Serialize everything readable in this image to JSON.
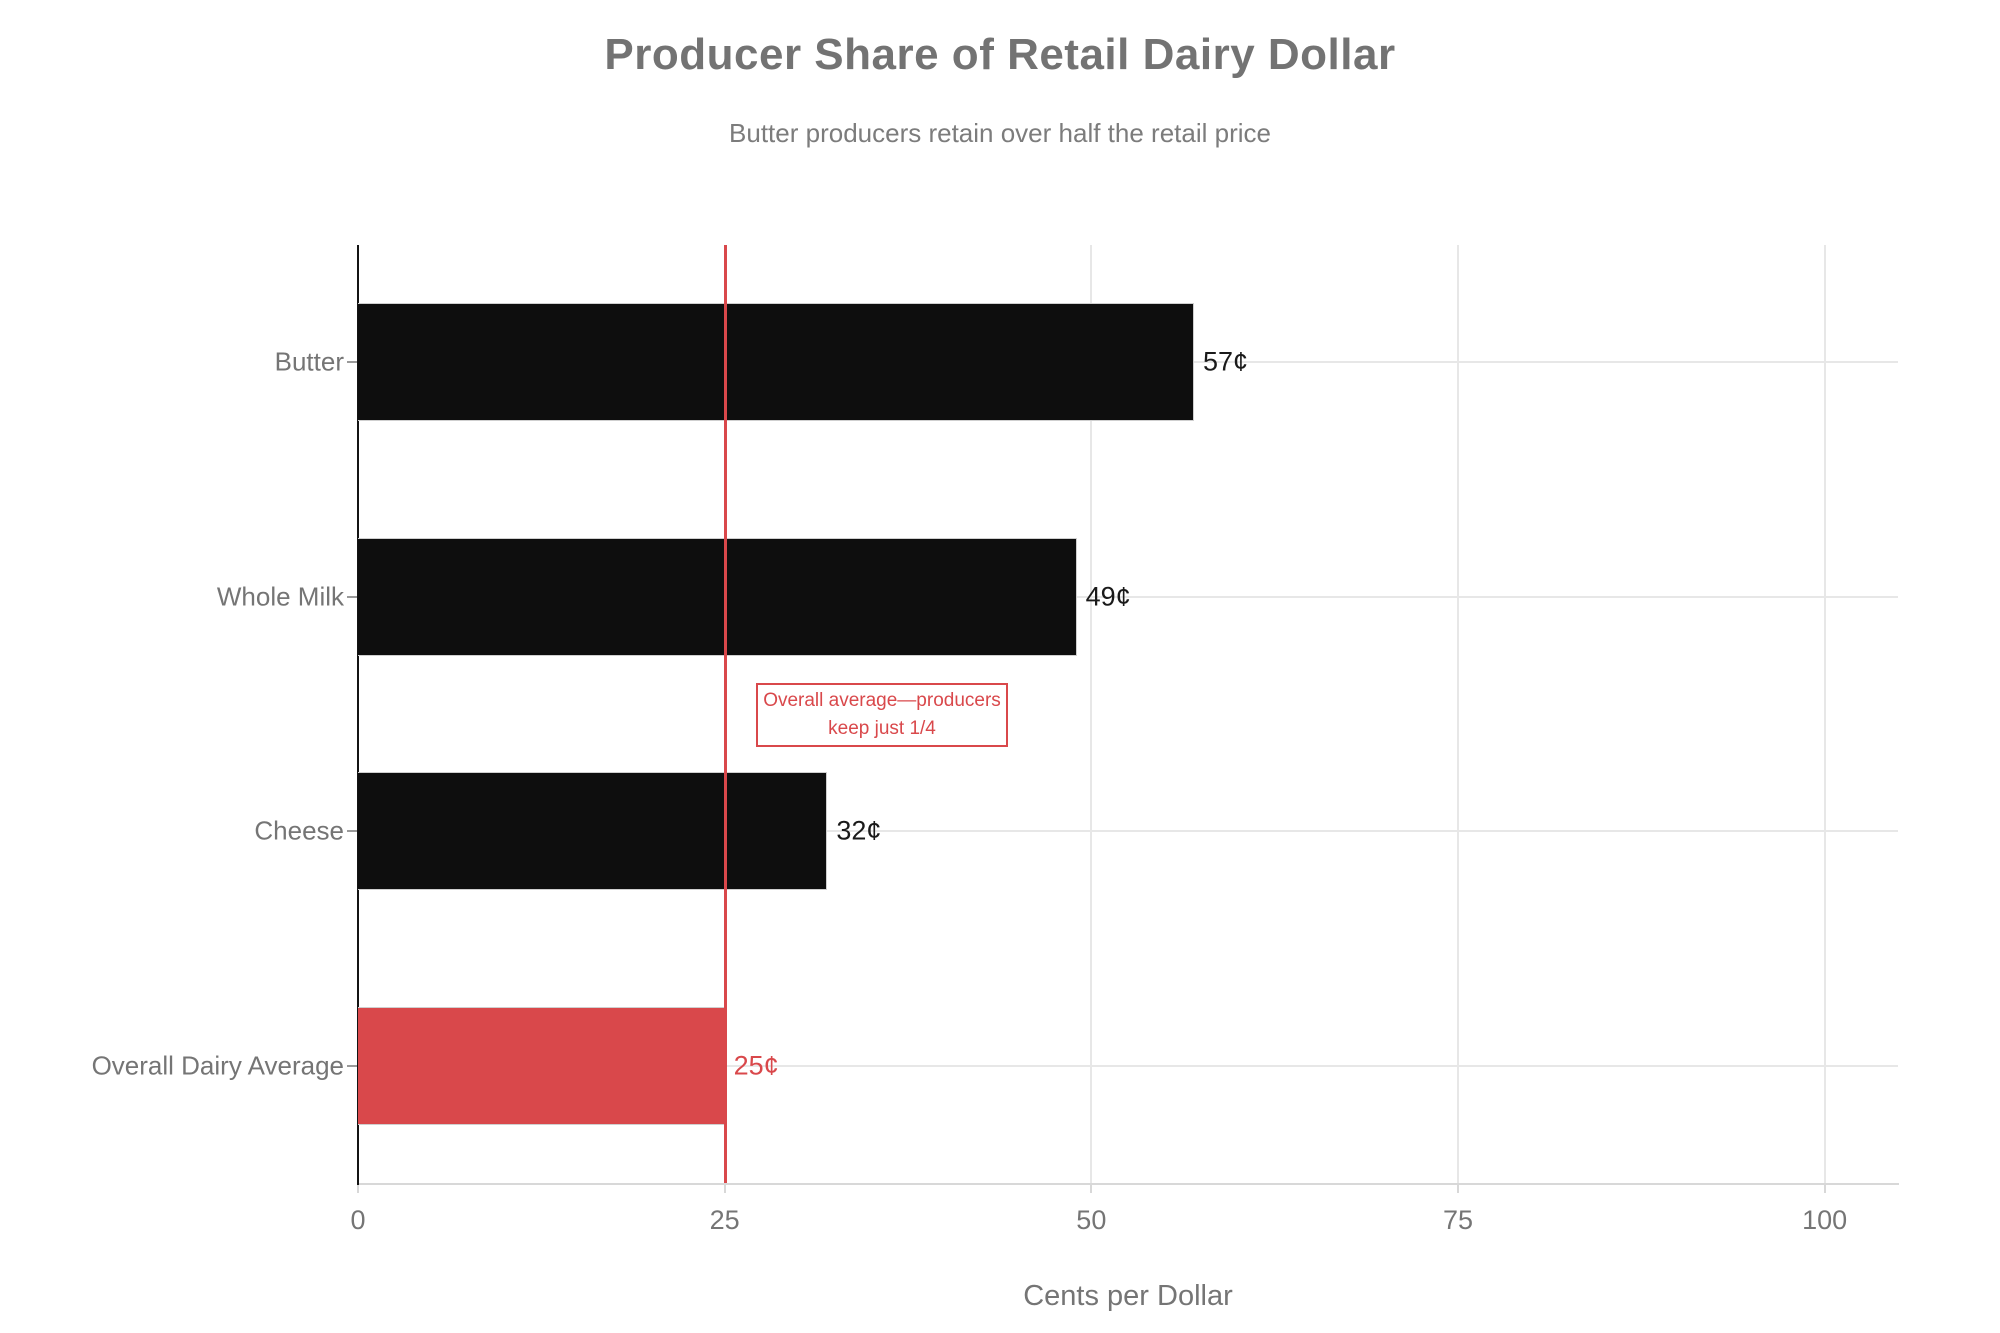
{
  "chart": {
    "title": "Producer Share of Retail Dairy Dollar",
    "subtitle": "Butter producers retain over half the retail price"
  },
  "chart_data": {
    "type": "bar",
    "orientation": "horizontal",
    "title": "Producer Share of Retail Dairy Dollar",
    "subtitle": "Butter producers retain over half the retail price",
    "categories": [
      "Butter",
      "Whole Milk",
      "Cheese",
      "Overall Dairy Average"
    ],
    "values": [
      57,
      49,
      32,
      25
    ],
    "value_labels": [
      "57¢",
      "49¢",
      "32¢",
      "25¢"
    ],
    "bar_colors": [
      "#0e0e0e",
      "#0e0e0e",
      "#0e0e0e",
      "#d9484b"
    ],
    "value_label_colors": [
      "#1a1a1a",
      "#1a1a1a",
      "#1a1a1a",
      "#d9484b"
    ],
    "xlabel": "Cents per Dollar",
    "xlim": [
      0,
      105
    ],
    "xticks": [
      0,
      25,
      50,
      75,
      100
    ],
    "grid": "on",
    "reference_line": {
      "x": 25,
      "color": "#d9484b"
    },
    "annotation_lines": [
      "Overall average—producers",
      "keep just 1/4"
    ]
  },
  "colors": {
    "accent_red": "#d9484b",
    "bar_black": "#0e0e0e",
    "text_gray": "#757575",
    "grid_gray": "#e7e7e7"
  }
}
